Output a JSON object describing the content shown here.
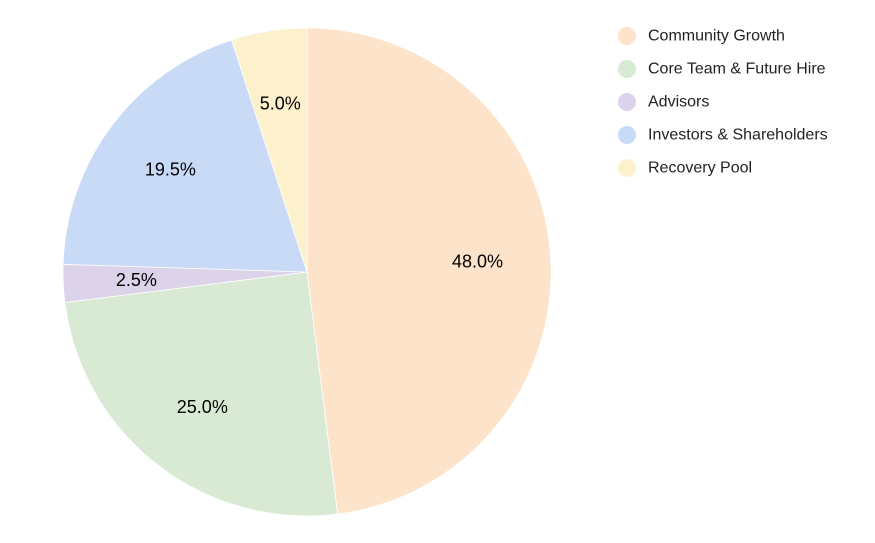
{
  "chart_data": {
    "type": "pie",
    "title": "",
    "legend_position": "top-right",
    "start_angle": "12 o'clock",
    "direction": "clockwise",
    "slices": [
      {
        "label": "Community Growth",
        "value": 48.0,
        "value_label": "48.0%",
        "color": "#fce3c9"
      },
      {
        "label": "Core Team & Future Hire",
        "value": 25.0,
        "value_label": "25.0%",
        "color": "#d8ead4"
      },
      {
        "label": "Advisors",
        "value": 2.5,
        "value_label": "2.5%",
        "color": "#dcd2ea"
      },
      {
        "label": "Investors & Shareholders",
        "value": 19.5,
        "value_label": "19.5%",
        "color": "#c9daf7"
      },
      {
        "label": "Recovery Pool",
        "value": 5.0,
        "value_label": "5.0%",
        "color": "#fdf0cc"
      }
    ]
  }
}
